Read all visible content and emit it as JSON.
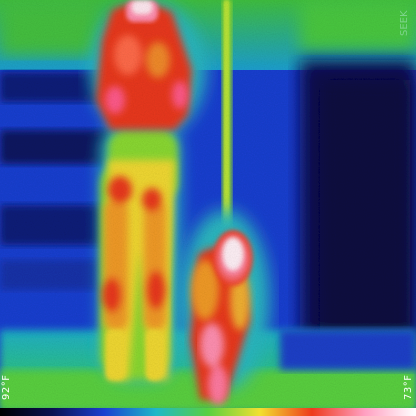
{
  "image": {
    "kind": "thermal-infrared-photo",
    "subjects": [
      "adult-standing",
      "child-standing"
    ],
    "palette": {
      "cold": "#0a1050",
      "cool": "#1a3fd0",
      "mid": "#1fb8c8",
      "warm": "#9adf28",
      "hot": "#f2e030",
      "hotter": "#ee3a1c",
      "hottest": "#ffffff"
    }
  },
  "scale": {
    "max_label": "92°F",
    "min_label": "73°F",
    "gradient": [
      "#000000",
      "#0a1050",
      "#1a3fd0",
      "#1fb8c8",
      "#58d040",
      "#f2e030",
      "#ee3a1c",
      "#ff9ec0",
      "#ffffff"
    ]
  },
  "watermark": {
    "text": "SEEK"
  }
}
